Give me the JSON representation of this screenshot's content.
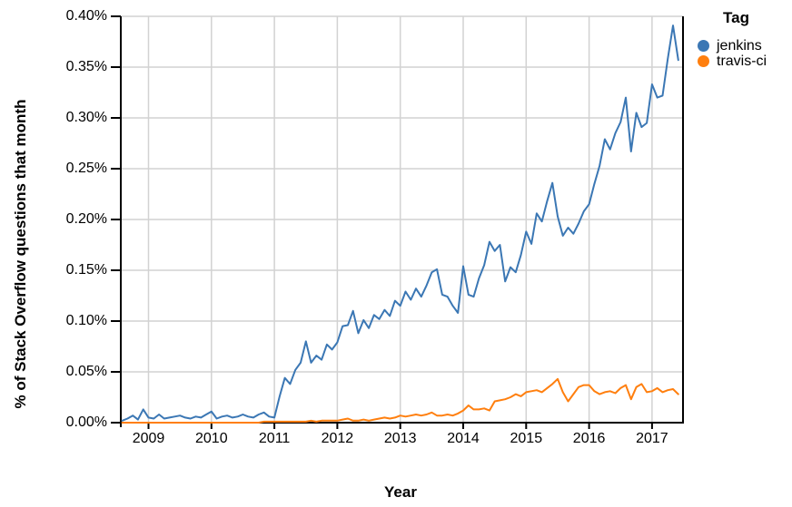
{
  "chart_data": {
    "type": "line",
    "title": "",
    "xlabel": "Year",
    "ylabel": "% of Stack Overflow questions that month",
    "x_ticks": [
      2009,
      2010,
      2011,
      2012,
      2013,
      2014,
      2015,
      2016,
      2017
    ],
    "y_tick_labels": [
      "0.00%",
      "0.05%",
      "0.10%",
      "0.15%",
      "0.20%",
      "0.25%",
      "0.30%",
      "0.35%",
      "0.40%"
    ],
    "ylim": [
      0,
      0.4
    ],
    "x_start_month": "2008-08",
    "x_end_month": "2017-06",
    "grid": true,
    "legend_position": "right",
    "legend_title": "Tag",
    "series": [
      {
        "name": "jenkins",
        "color": "#3b77b4",
        "unit": "% of Stack Overflow questions that month",
        "start_month": "2008-08",
        "values": [
          0.002,
          0.004,
          0.007,
          0.003,
          0.013,
          0.005,
          0.004,
          0.008,
          0.004,
          0.005,
          0.006,
          0.007,
          0.005,
          0.004,
          0.006,
          0.005,
          0.008,
          0.011,
          0.004,
          0.006,
          0.007,
          0.005,
          0.006,
          0.008,
          0.006,
          0.005,
          0.008,
          0.01,
          0.006,
          0.005,
          0.026,
          0.044,
          0.038,
          0.052,
          0.059,
          0.08,
          0.059,
          0.066,
          0.062,
          0.077,
          0.072,
          0.079,
          0.095,
          0.096,
          0.11,
          0.088,
          0.101,
          0.093,
          0.106,
          0.102,
          0.111,
          0.105,
          0.12,
          0.115,
          0.129,
          0.121,
          0.132,
          0.124,
          0.135,
          0.148,
          0.151,
          0.126,
          0.124,
          0.115,
          0.108,
          0.154,
          0.126,
          0.124,
          0.142,
          0.155,
          0.178,
          0.169,
          0.175,
          0.139,
          0.153,
          0.148,
          0.165,
          0.188,
          0.176,
          0.206,
          0.198,
          0.218,
          0.236,
          0.203,
          0.184,
          0.192,
          0.186,
          0.196,
          0.208,
          0.215,
          0.235,
          0.253,
          0.279,
          0.269,
          0.285,
          0.296,
          0.32,
          0.267,
          0.305,
          0.291,
          0.295,
          0.333,
          0.32,
          0.322,
          0.358,
          0.391,
          0.357
        ]
      },
      {
        "name": "travis-ci",
        "color": "#ff7f0e",
        "unit": "% of Stack Overflow questions that month",
        "start_month": "2008-08",
        "values": [
          0,
          0,
          0,
          0,
          0,
          0,
          0,
          0,
          0,
          0,
          0,
          0,
          0,
          0,
          0,
          0,
          0,
          0,
          0,
          0,
          0,
          0,
          0,
          0,
          0,
          0,
          0,
          0.001,
          0.001,
          0.001,
          0.001,
          0.001,
          0.001,
          0.001,
          0.001,
          0.001,
          0.002,
          0.001,
          0.002,
          0.002,
          0.002,
          0.002,
          0.003,
          0.004,
          0.002,
          0.002,
          0.003,
          0.002,
          0.003,
          0.004,
          0.005,
          0.004,
          0.005,
          0.007,
          0.006,
          0.007,
          0.008,
          0.007,
          0.008,
          0.01,
          0.007,
          0.007,
          0.008,
          0.007,
          0.009,
          0.012,
          0.017,
          0.013,
          0.013,
          0.014,
          0.012,
          0.021,
          0.022,
          0.023,
          0.025,
          0.028,
          0.026,
          0.03,
          0.031,
          0.032,
          0.03,
          0.034,
          0.038,
          0.043,
          0.03,
          0.021,
          0.028,
          0.035,
          0.037,
          0.037,
          0.031,
          0.028,
          0.03,
          0.031,
          0.029,
          0.034,
          0.037,
          0.023,
          0.035,
          0.038,
          0.03,
          0.031,
          0.034,
          0.03,
          0.032,
          0.033,
          0.028
        ]
      }
    ]
  },
  "axes": {
    "x_label": "Year",
    "y_label": "% of Stack Overflow questions that month"
  },
  "legend": {
    "title": "Tag",
    "items": [
      {
        "label": "jenkins",
        "color": "#3b77b4"
      },
      {
        "label": "travis-ci",
        "color": "#ff7f0e"
      }
    ]
  },
  "colors": {
    "grid": "#d2d2d2",
    "axis": "#000000",
    "background": "#ffffff"
  }
}
